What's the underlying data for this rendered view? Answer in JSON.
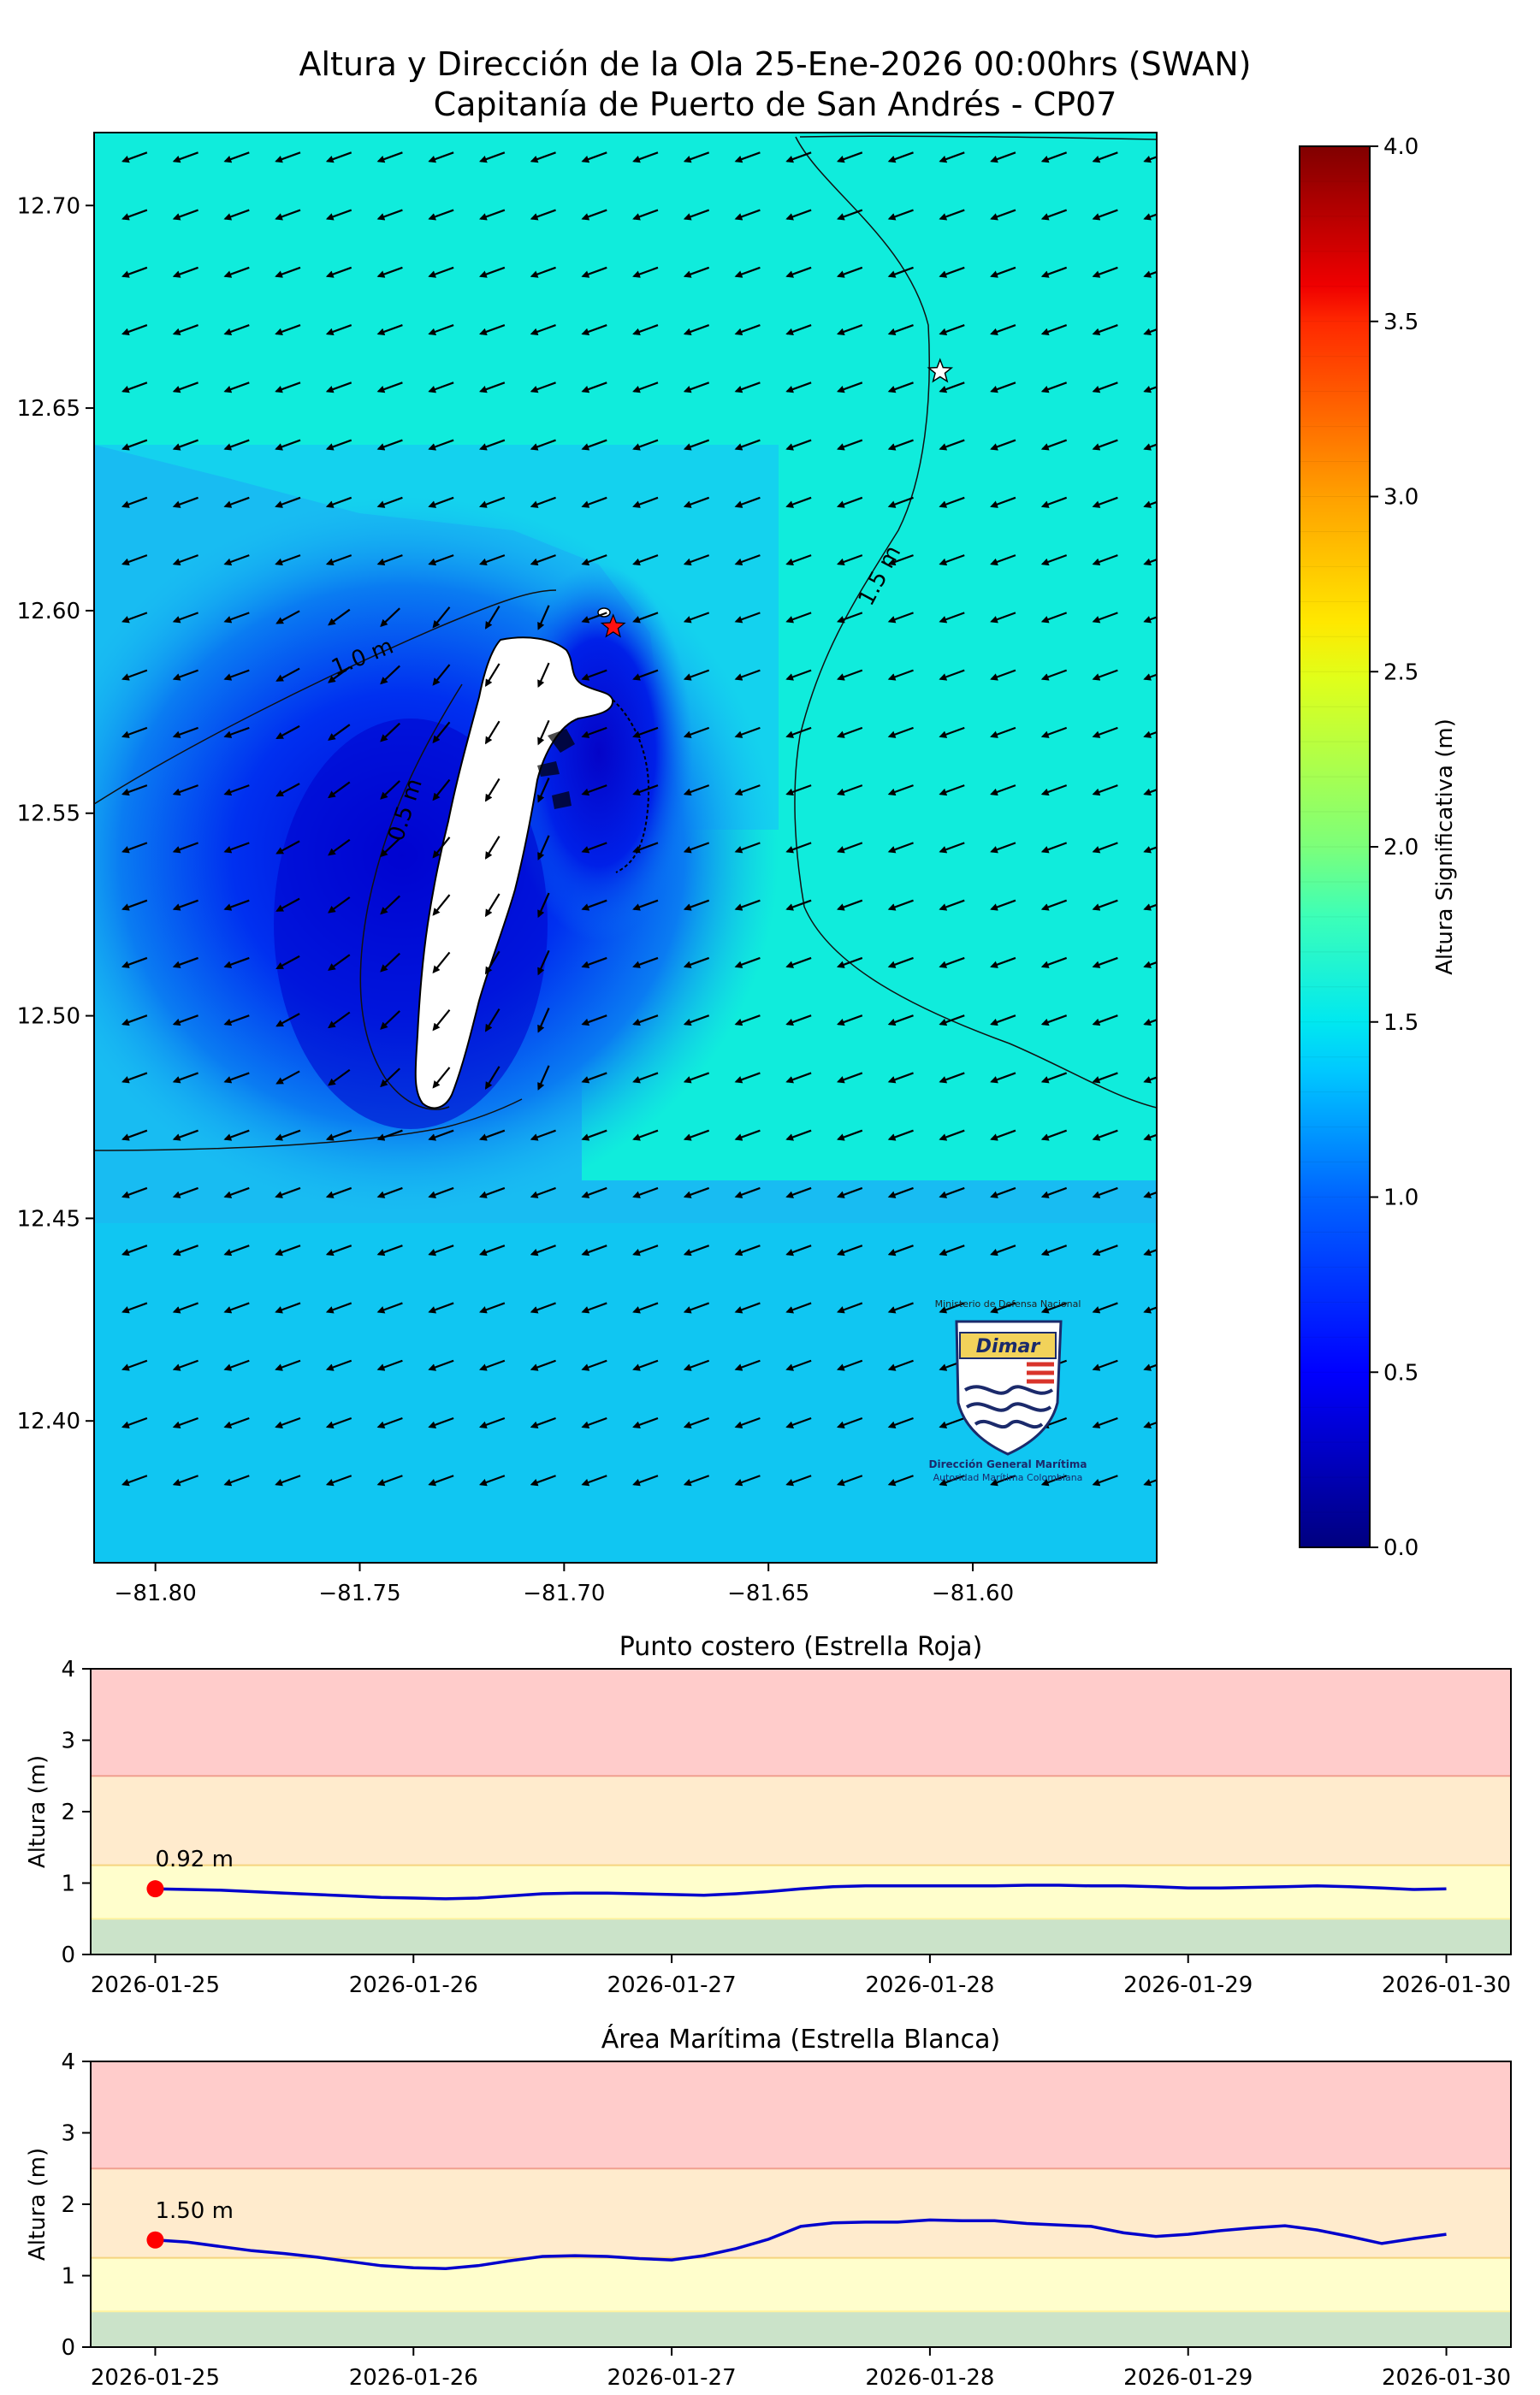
{
  "title": {
    "line1": "Altura y Dirección de la Ola 25-Ene-2026 00:00hrs (SWAN)",
    "line2": "Capitanía de Puerto de San Andrés - CP07"
  },
  "map": {
    "xticks": [
      -81.8,
      -81.75,
      -81.7,
      -81.65,
      -81.6
    ],
    "yticks": [
      12.4,
      12.45,
      12.5,
      12.55,
      12.6,
      12.65,
      12.7
    ],
    "xlim": [
      -81.815,
      -81.555
    ],
    "ylim": [
      12.365,
      12.718
    ],
    "contour_labels": [
      "1.0 m",
      "0.5 m",
      "1.5 m"
    ],
    "red_star": {
      "lon": -81.688,
      "lat": 12.596
    },
    "white_star": {
      "lon": -81.608,
      "lat": 12.659
    },
    "logo": {
      "top_text": "Ministerio de Defensa Nacional",
      "brand": "Dimar",
      "line1": "Dirección General Marítima",
      "line2": "Autoridad Marítima Colombiana"
    }
  },
  "colorbar": {
    "label": "Altura Significativa (m)",
    "range": [
      0,
      4
    ],
    "ticks": [
      "0.0",
      "0.5",
      "1.0",
      "1.5",
      "2.0",
      "2.5",
      "3.0",
      "3.5",
      "4.0"
    ]
  },
  "chart_data": [
    {
      "type": "line",
      "title": "Punto costero (Estrella Roja)",
      "ylabel": "Altura (m)",
      "ylim": [
        0,
        4
      ],
      "yticks": [
        "0",
        "1",
        "2",
        "3",
        "4"
      ],
      "xticks": [
        "2026-01-25",
        "2026-01-26",
        "2026-01-27",
        "2026-01-28",
        "2026-01-29",
        "2026-01-30"
      ],
      "bands": [
        {
          "from": 0,
          "to": 0.5,
          "color": "#cbe3c9"
        },
        {
          "from": 0.5,
          "to": 1.25,
          "color": "#fffecc"
        },
        {
          "from": 1.25,
          "to": 2.5,
          "color": "#ffebcd"
        },
        {
          "from": 2.5,
          "to": 4,
          "color": "#ffcccb"
        }
      ],
      "x_days": [
        0,
        0.125,
        0.25,
        0.375,
        0.5,
        0.625,
        0.75,
        0.875,
        1,
        1.125,
        1.25,
        1.375,
        1.5,
        1.625,
        1.75,
        1.875,
        2,
        2.125,
        2.25,
        2.375,
        2.5,
        2.625,
        2.75,
        2.875,
        3,
        3.125,
        3.25,
        3.375,
        3.5,
        3.625,
        3.75,
        3.875,
        4,
        4.125,
        4.25,
        4.375,
        4.5,
        4.625,
        4.75,
        4.875,
        5
      ],
      "values": [
        0.92,
        0.91,
        0.9,
        0.88,
        0.86,
        0.84,
        0.82,
        0.8,
        0.79,
        0.78,
        0.79,
        0.82,
        0.85,
        0.86,
        0.86,
        0.85,
        0.84,
        0.83,
        0.85,
        0.88,
        0.92,
        0.95,
        0.96,
        0.96,
        0.96,
        0.96,
        0.96,
        0.97,
        0.97,
        0.96,
        0.96,
        0.95,
        0.93,
        0.93,
        0.94,
        0.95,
        0.96,
        0.95,
        0.93,
        0.91,
        0.92
      ],
      "line_color": "#0000cc",
      "current": {
        "x_day": 0,
        "value": 0.92,
        "label": "0.92 m",
        "color": "#ff0000"
      }
    },
    {
      "type": "line",
      "title": "Área Marítima (Estrella Blanca)",
      "ylabel": "Altura (m)",
      "ylim": [
        0,
        4
      ],
      "yticks": [
        "0",
        "1",
        "2",
        "3",
        "4"
      ],
      "xticks": [
        "2026-01-25",
        "2026-01-26",
        "2026-01-27",
        "2026-01-28",
        "2026-01-29",
        "2026-01-30"
      ],
      "bands": [
        {
          "from": 0,
          "to": 0.5,
          "color": "#cbe3c9"
        },
        {
          "from": 0.5,
          "to": 1.25,
          "color": "#fffecc"
        },
        {
          "from": 1.25,
          "to": 2.5,
          "color": "#ffebcd"
        },
        {
          "from": 2.5,
          "to": 4,
          "color": "#ffcccb"
        }
      ],
      "x_days": [
        0,
        0.125,
        0.25,
        0.375,
        0.5,
        0.625,
        0.75,
        0.875,
        1,
        1.125,
        1.25,
        1.375,
        1.5,
        1.625,
        1.75,
        1.875,
        2,
        2.125,
        2.25,
        2.375,
        2.5,
        2.625,
        2.75,
        2.875,
        3,
        3.125,
        3.25,
        3.375,
        3.5,
        3.625,
        3.75,
        3.875,
        4,
        4.125,
        4.25,
        4.375,
        4.5,
        4.625,
        4.75,
        4.875,
        5
      ],
      "values": [
        1.5,
        1.47,
        1.41,
        1.35,
        1.31,
        1.26,
        1.2,
        1.14,
        1.11,
        1.1,
        1.14,
        1.21,
        1.27,
        1.28,
        1.27,
        1.24,
        1.22,
        1.28,
        1.38,
        1.51,
        1.69,
        1.74,
        1.75,
        1.75,
        1.78,
        1.77,
        1.77,
        1.73,
        1.71,
        1.69,
        1.6,
        1.55,
        1.58,
        1.63,
        1.67,
        1.7,
        1.64,
        1.55,
        1.45,
        1.52,
        1.58
      ],
      "line_color": "#0000cc",
      "current": {
        "x_day": 0,
        "value": 1.5,
        "label": "1.50 m",
        "color": "#ff0000"
      }
    }
  ]
}
